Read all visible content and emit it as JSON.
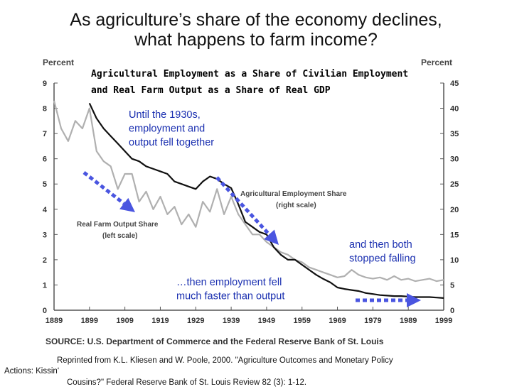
{
  "slide": {
    "title_line1": "As agriculture’s share of the economy declines,",
    "title_line2": "what happens to farm income?"
  },
  "citation": {
    "line1": "Reprinted from K.L. Kliesen and W. Poole, 2000. \"Agriculture Outcomes and Monetary Policy",
    "line2": "Actions: Kissin‘",
    "line3": "Cousins?\" Federal Reserve Bank of St. Louis Review 82 (3): 1-12."
  },
  "chart_data": {
    "type": "line",
    "title_line1": "Agricultural Employment as a Share of Civilian Employment",
    "title_line2": "and Real Farm Output as a Share of Real GDP",
    "left_axis_label": "Percent",
    "right_axis_label": "Percent",
    "left_ylim": [
      0,
      9
    ],
    "right_ylim": [
      0,
      45
    ],
    "left_ticks": [
      "0",
      "1",
      "2",
      "3",
      "4",
      "5",
      "6",
      "7",
      "8",
      "9"
    ],
    "right_ticks": [
      "0",
      "5",
      "10",
      "15",
      "20",
      "25",
      "30",
      "35",
      "40",
      "45"
    ],
    "xlim": [
      1889,
      1999
    ],
    "x_ticks": [
      "1889",
      "1899",
      "1909",
      "1919",
      "1929",
      "1939",
      "1949",
      "1959",
      "1969",
      "1979",
      "1989",
      "1999"
    ],
    "source": "SOURCE:  U.S. Department of Commerce and the Federal Reserve Bank of St. Louis",
    "series": [
      {
        "name": "Agricultural Employment Share",
        "sublabel": "(right scale)",
        "axis": "right",
        "color": "#111111",
        "x": [
          1899,
          1901,
          1903,
          1905,
          1907,
          1909,
          1911,
          1913,
          1915,
          1917,
          1919,
          1921,
          1923,
          1925,
          1927,
          1929,
          1931,
          1933,
          1935,
          1937,
          1939,
          1941,
          1943,
          1945,
          1947,
          1949,
          1951,
          1953,
          1955,
          1957,
          1959,
          1961,
          1963,
          1965,
          1967,
          1969,
          1971,
          1973,
          1975,
          1977,
          1979,
          1981,
          1983,
          1985,
          1987,
          1989,
          1991,
          1993,
          1995,
          1997,
          1999
        ],
        "y": [
          41,
          38,
          36,
          34.5,
          33,
          31.5,
          30,
          29.5,
          28.5,
          28,
          27.5,
          27,
          25.5,
          25,
          24.5,
          24,
          25.5,
          26.5,
          26,
          25,
          24.2,
          21,
          17.5,
          16.5,
          15.5,
          15,
          12.5,
          11,
          10,
          10,
          9,
          8,
          7,
          6.2,
          5.5,
          4.5,
          4.2,
          4,
          3.8,
          3.4,
          3.2,
          3,
          2.9,
          2.8,
          2.8,
          2.7,
          2.6,
          2.6,
          2.6,
          2.5,
          2.4
        ]
      },
      {
        "name": "Real Farm Output Share",
        "sublabel": "(left scale)",
        "axis": "left",
        "color": "#b0b0b0",
        "x": [
          1889,
          1891,
          1893,
          1895,
          1897,
          1899,
          1901,
          1903,
          1905,
          1907,
          1909,
          1911,
          1913,
          1915,
          1917,
          1919,
          1921,
          1923,
          1925,
          1927,
          1929,
          1931,
          1933,
          1935,
          1937,
          1939,
          1941,
          1943,
          1945,
          1947,
          1949,
          1951,
          1953,
          1955,
          1957,
          1959,
          1961,
          1963,
          1965,
          1967,
          1969,
          1971,
          1973,
          1975,
          1977,
          1979,
          1981,
          1983,
          1985,
          1987,
          1989,
          1991,
          1993,
          1995,
          1997,
          1999
        ],
        "y": [
          8.3,
          7.2,
          6.7,
          7.5,
          7.2,
          8.0,
          6.3,
          5.9,
          5.7,
          4.8,
          5.4,
          5.4,
          4.3,
          4.7,
          4.0,
          4.5,
          3.8,
          4.1,
          3.4,
          3.8,
          3.3,
          4.3,
          3.9,
          4.8,
          3.8,
          4.5,
          3.8,
          3.4,
          3.0,
          3.0,
          2.7,
          2.5,
          2.3,
          2.2,
          2.0,
          1.9,
          1.7,
          1.6,
          1.5,
          1.4,
          1.3,
          1.35,
          1.6,
          1.4,
          1.3,
          1.25,
          1.3,
          1.2,
          1.35,
          1.2,
          1.25,
          1.15,
          1.2,
          1.25,
          1.15,
          1.2
        ]
      }
    ],
    "annotations": [
      {
        "name": "until-1930s",
        "lines": [
          "Until the 1930s,",
          "employment and",
          "output fell together"
        ]
      },
      {
        "name": "then-employment-fell",
        "lines": [
          "…then employment fell",
          "much faster than output"
        ]
      },
      {
        "name": "then-both-stopped",
        "lines": [
          "and then both",
          "stopped falling"
        ]
      }
    ],
    "arrow_color": "#4a55e0"
  }
}
